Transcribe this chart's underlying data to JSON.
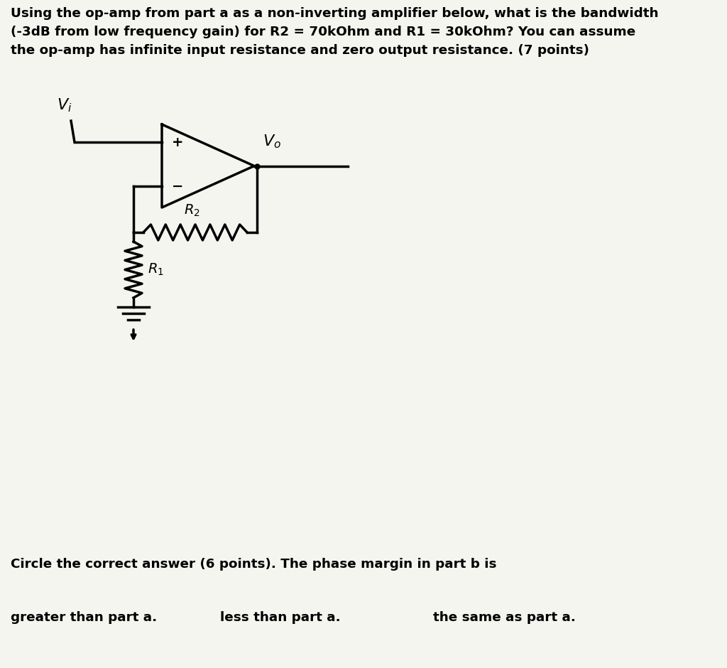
{
  "title_text_line1": "Using the op-amp from part a as a non-inverting amplifier below, what is the bandwidth",
  "title_text_line2": "(-3dB from low frequency gain) for R2 = 70kOhm and R1 = 30kOhm? You can assume",
  "title_text_line3": "the op-amp has infinite input resistance and zero output resistance. (7 points)",
  "bottom_text1": "Circle the correct answer (6 points). The phase margin in part b is",
  "bottom_text2a": "greater than part a.",
  "bottom_text2b": "less than part a.",
  "bottom_text2c": "the same as part a.",
  "bg_color": "#f5f5f0",
  "text_color": "#000000",
  "font_size_title": 13.2,
  "font_size_bottom": 13.2,
  "lw": 2.0
}
